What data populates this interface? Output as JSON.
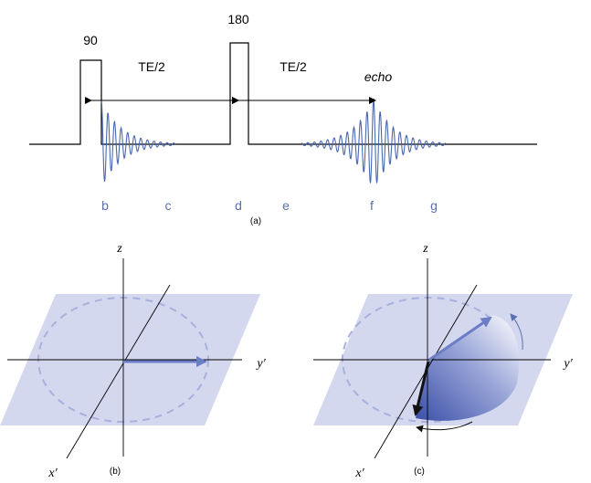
{
  "sequence": {
    "pulse_90_label": "90",
    "pulse_180_label": "180",
    "te_half_1": "TE/2",
    "te_half_2": "TE/2",
    "echo_label": "echo",
    "time_points": [
      "b",
      "c",
      "d",
      "e",
      "f",
      "g"
    ],
    "panel_label": "(a)"
  },
  "panel_b": {
    "z_label": "z",
    "y_label": "y′",
    "x_label": "x′",
    "panel_label": "(b)"
  },
  "panel_c": {
    "z_label": "z",
    "y_label": "y′",
    "x_label": "x′",
    "panel_label": "(c)"
  },
  "colors": {
    "signal": "#4a68b0",
    "plane": "#d4d8ef",
    "dashed_circle": "#a8b0dc",
    "arrow": "#6b7dc4",
    "letters": "#5a6fb0",
    "ink": "#000000"
  }
}
